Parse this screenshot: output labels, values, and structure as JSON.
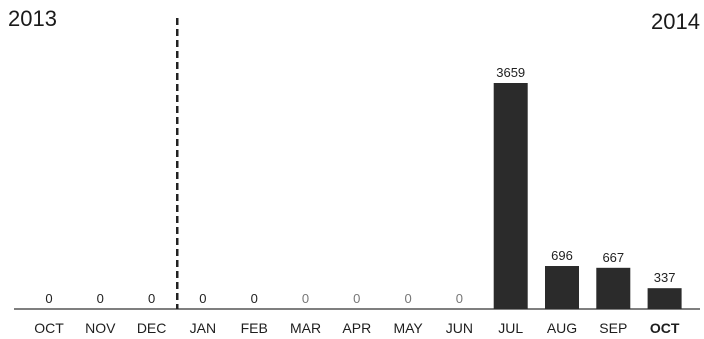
{
  "chart_data": {
    "type": "bar",
    "title": "",
    "xlabel": "",
    "ylabel": "",
    "year_labels": {
      "left": "2013",
      "right": "2014"
    },
    "categories": [
      "OCT",
      "NOV",
      "DEC",
      "JAN",
      "FEB",
      "MAR",
      "APR",
      "MAY",
      "JUN",
      "JUL",
      "AUG",
      "SEP",
      "OCT"
    ],
    "values": [
      0,
      0,
      0,
      0,
      0,
      0,
      0,
      0,
      0,
      3659,
      696,
      667,
      337
    ],
    "data_labels": [
      "0",
      "0",
      "0",
      "0",
      "0",
      "0",
      "0",
      "0",
      "0",
      "3659",
      "696",
      "667",
      "337"
    ],
    "emphasized_category_index": 12,
    "year_divider_after_index": 2,
    "ylim": [
      0,
      3659
    ],
    "grid": false,
    "legend": "none",
    "colors": {
      "bar": "#2b2b2b",
      "axis": "#555555",
      "divider": "#222222"
    }
  }
}
